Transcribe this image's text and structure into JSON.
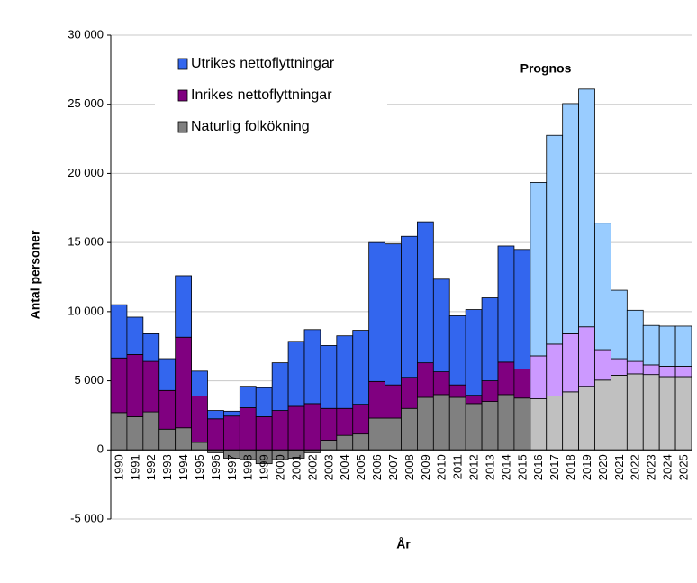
{
  "chart_data": {
    "type": "stacked_bar",
    "y_label": "Antal personer",
    "x_label": "År",
    "annotation": {
      "text": "Prognos",
      "from": "2016"
    },
    "categories": [
      "1990",
      "1991",
      "1992",
      "1993",
      "1994",
      "1995",
      "1996",
      "1997",
      "1998",
      "1999",
      "2000",
      "2001",
      "2002",
      "2003",
      "2004",
      "2005",
      "2006",
      "2007",
      "2008",
      "2009",
      "2010",
      "2011",
      "2012",
      "2013",
      "2014",
      "2015",
      "2016",
      "2017",
      "2018",
      "2019",
      "2020",
      "2021",
      "2022",
      "2023",
      "2024",
      "2025"
    ],
    "series": [
      {
        "name": "Naturlig folkökning",
        "color": "#808080",
        "forecast_color": "#c0c0c0",
        "values": [
          2700,
          2400,
          2750,
          1500,
          1600,
          550,
          -200,
          -600,
          -700,
          -1000,
          -700,
          -600,
          -200,
          700,
          1050,
          1150,
          2300,
          2300,
          3000,
          3800,
          4000,
          3800,
          3350,
          3500,
          4000,
          3750,
          3700,
          3900,
          4200,
          4600,
          5050,
          5400,
          5500,
          5450,
          5300,
          5300
        ]
      },
      {
        "name": "Inrikes nettoflyttningar",
        "color": "#800080",
        "forecast_color": "#cc99ff",
        "values": [
          3950,
          4500,
          3650,
          2800,
          6550,
          3350,
          2250,
          2450,
          3050,
          2400,
          2850,
          3150,
          3350,
          2300,
          1950,
          2150,
          2650,
          2400,
          2250,
          2500,
          1650,
          900,
          600,
          1500,
          2350,
          2100,
          3100,
          3750,
          4200,
          4300,
          2200,
          1200,
          900,
          700,
          750,
          750
        ]
      },
      {
        "name": "Utrikes nettoflyttningar",
        "color": "#3366ee",
        "forecast_color": "#99ccff",
        "values": [
          3850,
          2700,
          2000,
          2300,
          4450,
          1800,
          600,
          350,
          1550,
          2100,
          3450,
          4700,
          5350,
          4550,
          5250,
          5350,
          10050,
          10200,
          10200,
          10200,
          6700,
          5000,
          6200,
          6000,
          8400,
          8650,
          12550,
          15100,
          16650,
          17200,
          9150,
          4950,
          3700,
          2850,
          2900,
          2900
        ]
      }
    ],
    "ylim": [
      -5000,
      30000
    ],
    "yticks": [
      {
        "value": -5000,
        "label": "-5 000"
      },
      0,
      {
        "value": 5000,
        "label": "5 000"
      },
      {
        "value": 10000,
        "label": "10 000"
      },
      {
        "value": 15000,
        "label": "15 000"
      },
      {
        "value": 20000,
        "label": "20 000"
      },
      {
        "value": 25000,
        "label": "25 000"
      },
      {
        "value": 30000,
        "label": "30 000"
      }
    ],
    "grid": true
  }
}
